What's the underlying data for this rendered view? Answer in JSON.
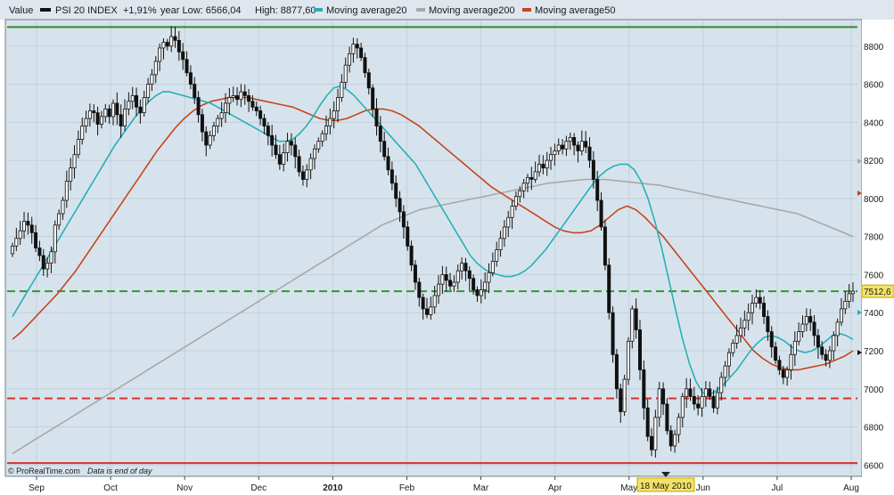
{
  "chart_data": {
    "type": "candlestick",
    "legend": {
      "value_label": "Value",
      "instrument": "PSI 20 INDEX",
      "change": "+1,91%",
      "year_low": "year Low: 6566,04",
      "year_high": "High: 8877,60",
      "series": [
        {
          "name": "Moving average20",
          "color": "#27b0b8"
        },
        {
          "name": "Moving average200",
          "color": "#a8a8a8"
        },
        {
          "name": "Moving average50",
          "color": "#c4461b"
        }
      ]
    },
    "y_ticks": [
      6600,
      6800,
      7000,
      7200,
      7400,
      7600,
      7800,
      8000,
      8200,
      8400,
      8600,
      8800
    ],
    "ylim": [
      6550,
      8930
    ],
    "x_months": [
      "Sep",
      "Oct",
      "Nov",
      "Dec",
      "2010",
      "Feb",
      "Mar",
      "Apr",
      "May",
      "Jun",
      "Jul",
      "Aug"
    ],
    "last_value": "7512,6",
    "date_marker": "18 May 2010",
    "footer": {
      "brand": "© ProRealTime.com",
      "note": "Data is end of day"
    },
    "horizontal_lines": [
      {
        "value": 8900,
        "style": "solid",
        "color": "#2e8b2e"
      },
      {
        "value": 7512.6,
        "style": "dashed",
        "color": "#2e9a2e"
      },
      {
        "value": 6950,
        "style": "dashed",
        "color": "#d83030"
      },
      {
        "value": 6610,
        "style": "solid",
        "color": "#d83030"
      }
    ],
    "closes": [
      7750,
      7790,
      7830,
      7880,
      7860,
      7820,
      7740,
      7700,
      7630,
      7660,
      7720,
      7860,
      7920,
      7990,
      8090,
      8160,
      8230,
      8310,
      8380,
      8420,
      8460,
      8450,
      8390,
      8430,
      8470,
      8430,
      8500,
      8440,
      8380,
      8470,
      8510,
      8540,
      8480,
      8450,
      8530,
      8600,
      8650,
      8720,
      8790,
      8820,
      8800,
      8850,
      8830,
      8770,
      8730,
      8660,
      8600,
      8530,
      8440,
      8350,
      8280,
      8330,
      8380,
      8420,
      8450,
      8500,
      8530,
      8540,
      8520,
      8560,
      8540,
      8510,
      8480,
      8460,
      8420,
      8380,
      8330,
      8280,
      8230,
      8180,
      8240,
      8300,
      8280,
      8220,
      8140,
      8100,
      8150,
      8210,
      8260,
      8300,
      8340,
      8380,
      8420,
      8460,
      8530,
      8610,
      8700,
      8760,
      8810,
      8790,
      8740,
      8660,
      8580,
      8470,
      8380,
      8300,
      8220,
      8150,
      8080,
      8000,
      7930,
      7850,
      7750,
      7650,
      7560,
      7480,
      7420,
      7390,
      7430,
      7490,
      7550,
      7600,
      7570,
      7540,
      7560,
      7620,
      7660,
      7620,
      7580,
      7520,
      7490,
      7520,
      7560,
      7610,
      7670,
      7730,
      7790,
      7850,
      7900,
      7960,
      8010,
      8040,
      8080,
      8110,
      8100,
      8140,
      8180,
      8160,
      8200,
      8230,
      8250,
      8280,
      8260,
      8300,
      8320,
      8280,
      8250,
      8300,
      8270,
      8200,
      8100,
      7990,
      7850,
      7650,
      7400,
      7180,
      7000,
      6880,
      7050,
      7250,
      7420,
      7310,
      7100,
      6900,
      6750,
      6680,
      6850,
      7000,
      6920,
      6780,
      6700,
      6760,
      6850,
      6960,
      7000,
      6960,
      6920,
      6900,
      6960,
      7000,
      6960,
      6900,
      6980,
      7060,
      7120,
      7190,
      7240,
      7280,
      7320,
      7360,
      7400,
      7450,
      7480,
      7450,
      7380,
      7300,
      7220,
      7150,
      7100,
      7060,
      7100,
      7180,
      7250,
      7300,
      7340,
      7380,
      7350,
      7280,
      7220,
      7180,
      7150,
      7200,
      7280,
      7350,
      7420,
      7460,
      7500,
      7512.6
    ],
    "ma20": [
      7380,
      7440,
      7500,
      7560,
      7620,
      7680,
      7740,
      7800,
      7860,
      7920,
      7980,
      8040,
      8100,
      8160,
      8220,
      8280,
      8330,
      8380,
      8430,
      8470,
      8510,
      8540,
      8560,
      8560,
      8550,
      8540,
      8530,
      8520,
      8510,
      8500,
      8480,
      8460,
      8440,
      8420,
      8400,
      8380,
      8360,
      8340,
      8320,
      8300,
      8300,
      8310,
      8340,
      8380,
      8430,
      8490,
      8540,
      8580,
      8590,
      8570,
      8540,
      8500,
      8460,
      8420,
      8380,
      8340,
      8300,
      8260,
      8220,
      8180,
      8120,
      8060,
      8000,
      7940,
      7880,
      7820,
      7760,
      7700,
      7660,
      7630,
      7610,
      7600,
      7590,
      7590,
      7600,
      7620,
      7650,
      7690,
      7730,
      7780,
      7830,
      7880,
      7930,
      7980,
      8030,
      8080,
      8120,
      8150,
      8170,
      8180,
      8180,
      8150,
      8090,
      8000,
      7880,
      7740,
      7580,
      7420,
      7270,
      7140,
      7040,
      6980,
      6970,
      6990,
      7020,
      7060,
      7100,
      7150,
      7200,
      7240,
      7270,
      7280,
      7270,
      7250,
      7220,
      7200,
      7190,
      7200,
      7220,
      7250,
      7280,
      7290,
      7280,
      7260
    ],
    "ma50": [
      7260,
      7300,
      7350,
      7400,
      7450,
      7500,
      7560,
      7620,
      7690,
      7760,
      7830,
      7900,
      7970,
      8040,
      8110,
      8180,
      8250,
      8310,
      8370,
      8420,
      8460,
      8490,
      8510,
      8520,
      8530,
      8530,
      8530,
      8520,
      8510,
      8500,
      8490,
      8480,
      8460,
      8440,
      8420,
      8410,
      8410,
      8420,
      8440,
      8460,
      8470,
      8470,
      8460,
      8440,
      8410,
      8380,
      8340,
      8300,
      8260,
      8220,
      8180,
      8140,
      8100,
      8060,
      8030,
      8000,
      7970,
      7940,
      7910,
      7880,
      7850,
      7830,
      7820,
      7820,
      7830,
      7860,
      7900,
      7940,
      7960,
      7940,
      7900,
      7850,
      7800,
      7740,
      7680,
      7620,
      7560,
      7500,
      7440,
      7380,
      7320,
      7260,
      7200,
      7160,
      7130,
      7110,
      7100,
      7100,
      7110,
      7120,
      7130,
      7150,
      7170,
      7200
    ],
    "ma200": [
      6660,
      6690,
      6720,
      6750,
      6780,
      6810,
      6840,
      6870,
      6900,
      6930,
      6960,
      6990,
      7020,
      7050,
      7080,
      7110,
      7140,
      7170,
      7200,
      7230,
      7260,
      7290,
      7320,
      7350,
      7380,
      7410,
      7440,
      7470,
      7500,
      7530,
      7560,
      7590,
      7620,
      7650,
      7680,
      7710,
      7740,
      7770,
      7800,
      7830,
      7860,
      7880,
      7900,
      7920,
      7940,
      7950,
      7960,
      7970,
      7980,
      7990,
      8000,
      8010,
      8020,
      8030,
      8040,
      8050,
      8060,
      8070,
      8080,
      8085,
      8090,
      8095,
      8100,
      8100,
      8100,
      8095,
      8090,
      8085,
      8080,
      8075,
      8070,
      8060,
      8050,
      8040,
      8030,
      8020,
      8010,
      8000,
      7990,
      7980,
      7970,
      7960,
      7950,
      7940,
      7930,
      7920,
      7900,
      7880,
      7860,
      7840,
      7820,
      7800
    ]
  }
}
